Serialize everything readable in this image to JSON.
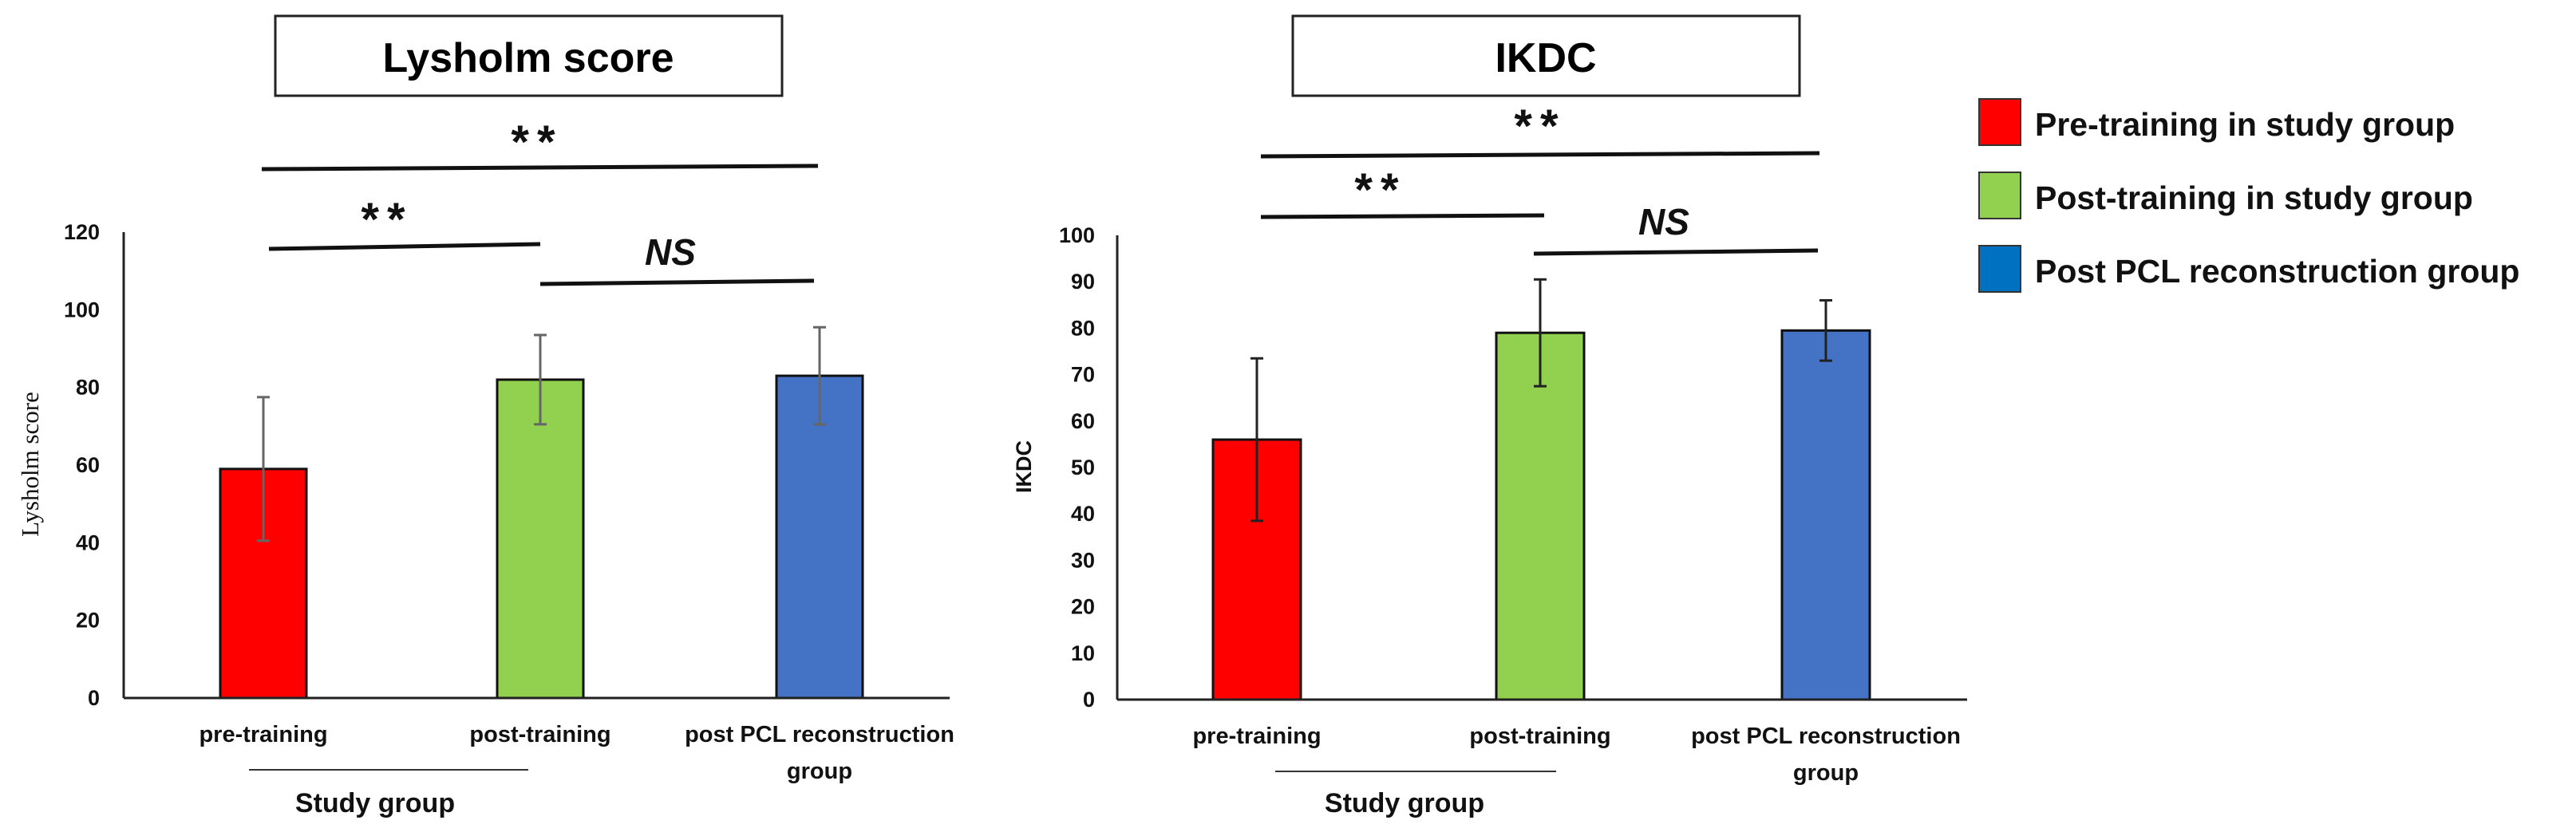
{
  "chart_data": [
    {
      "type": "bar",
      "title": "Lysholm score",
      "ylabel": "Lysholm score",
      "xlabel": "",
      "ylim": [
        0,
        120
      ],
      "yticks": [
        0,
        20,
        40,
        60,
        80,
        100,
        120
      ],
      "categories": [
        "pre-training",
        "post-training",
        "post PCL reconstruction group"
      ],
      "category_lines": [
        [
          "pre-training"
        ],
        [
          "post-training"
        ],
        [
          "post PCL reconstruction",
          "group"
        ]
      ],
      "values": [
        59,
        82,
        83
      ],
      "errors": [
        18.5,
        11.5,
        12.5
      ],
      "colors": [
        "#ff0000",
        "#92d050",
        "#4472c4"
      ],
      "group_label": "Study group",
      "significance": [
        {
          "from": 0,
          "to": 1,
          "label": "**",
          "level": 1
        },
        {
          "from": 1,
          "to": 2,
          "label": "NS",
          "level": 1
        },
        {
          "from": 0,
          "to": 2,
          "label": "**",
          "level": 2
        }
      ]
    },
    {
      "type": "bar",
      "title": "IKDC",
      "ylabel": "IKDC",
      "xlabel": "",
      "ylim": [
        0,
        100
      ],
      "yticks": [
        0,
        10,
        20,
        30,
        40,
        50,
        60,
        70,
        80,
        90,
        100
      ],
      "categories": [
        "pre-training",
        "post-training",
        "post PCL reconstruction group"
      ],
      "category_lines": [
        [
          "pre-training"
        ],
        [
          "post-training"
        ],
        [
          "post PCL reconstruction",
          "group"
        ]
      ],
      "values": [
        56,
        79,
        79.5
      ],
      "errors": [
        17.5,
        11.5,
        6.5
      ],
      "colors": [
        "#ff0000",
        "#92d050",
        "#4472c4"
      ],
      "group_label": "Study group",
      "significance": [
        {
          "from": 0,
          "to": 1,
          "label": "**",
          "level": 1
        },
        {
          "from": 1,
          "to": 2,
          "label": "NS",
          "level": 1
        },
        {
          "from": 0,
          "to": 2,
          "label": "**",
          "level": 2
        }
      ]
    }
  ],
  "legend": [
    {
      "label": "Pre-training in study group",
      "color": "#ff0000"
    },
    {
      "label": "Post-training in study group",
      "color": "#92d050"
    },
    {
      "label": "Post PCL reconstruction group",
      "color": "#0070c0"
    }
  ]
}
